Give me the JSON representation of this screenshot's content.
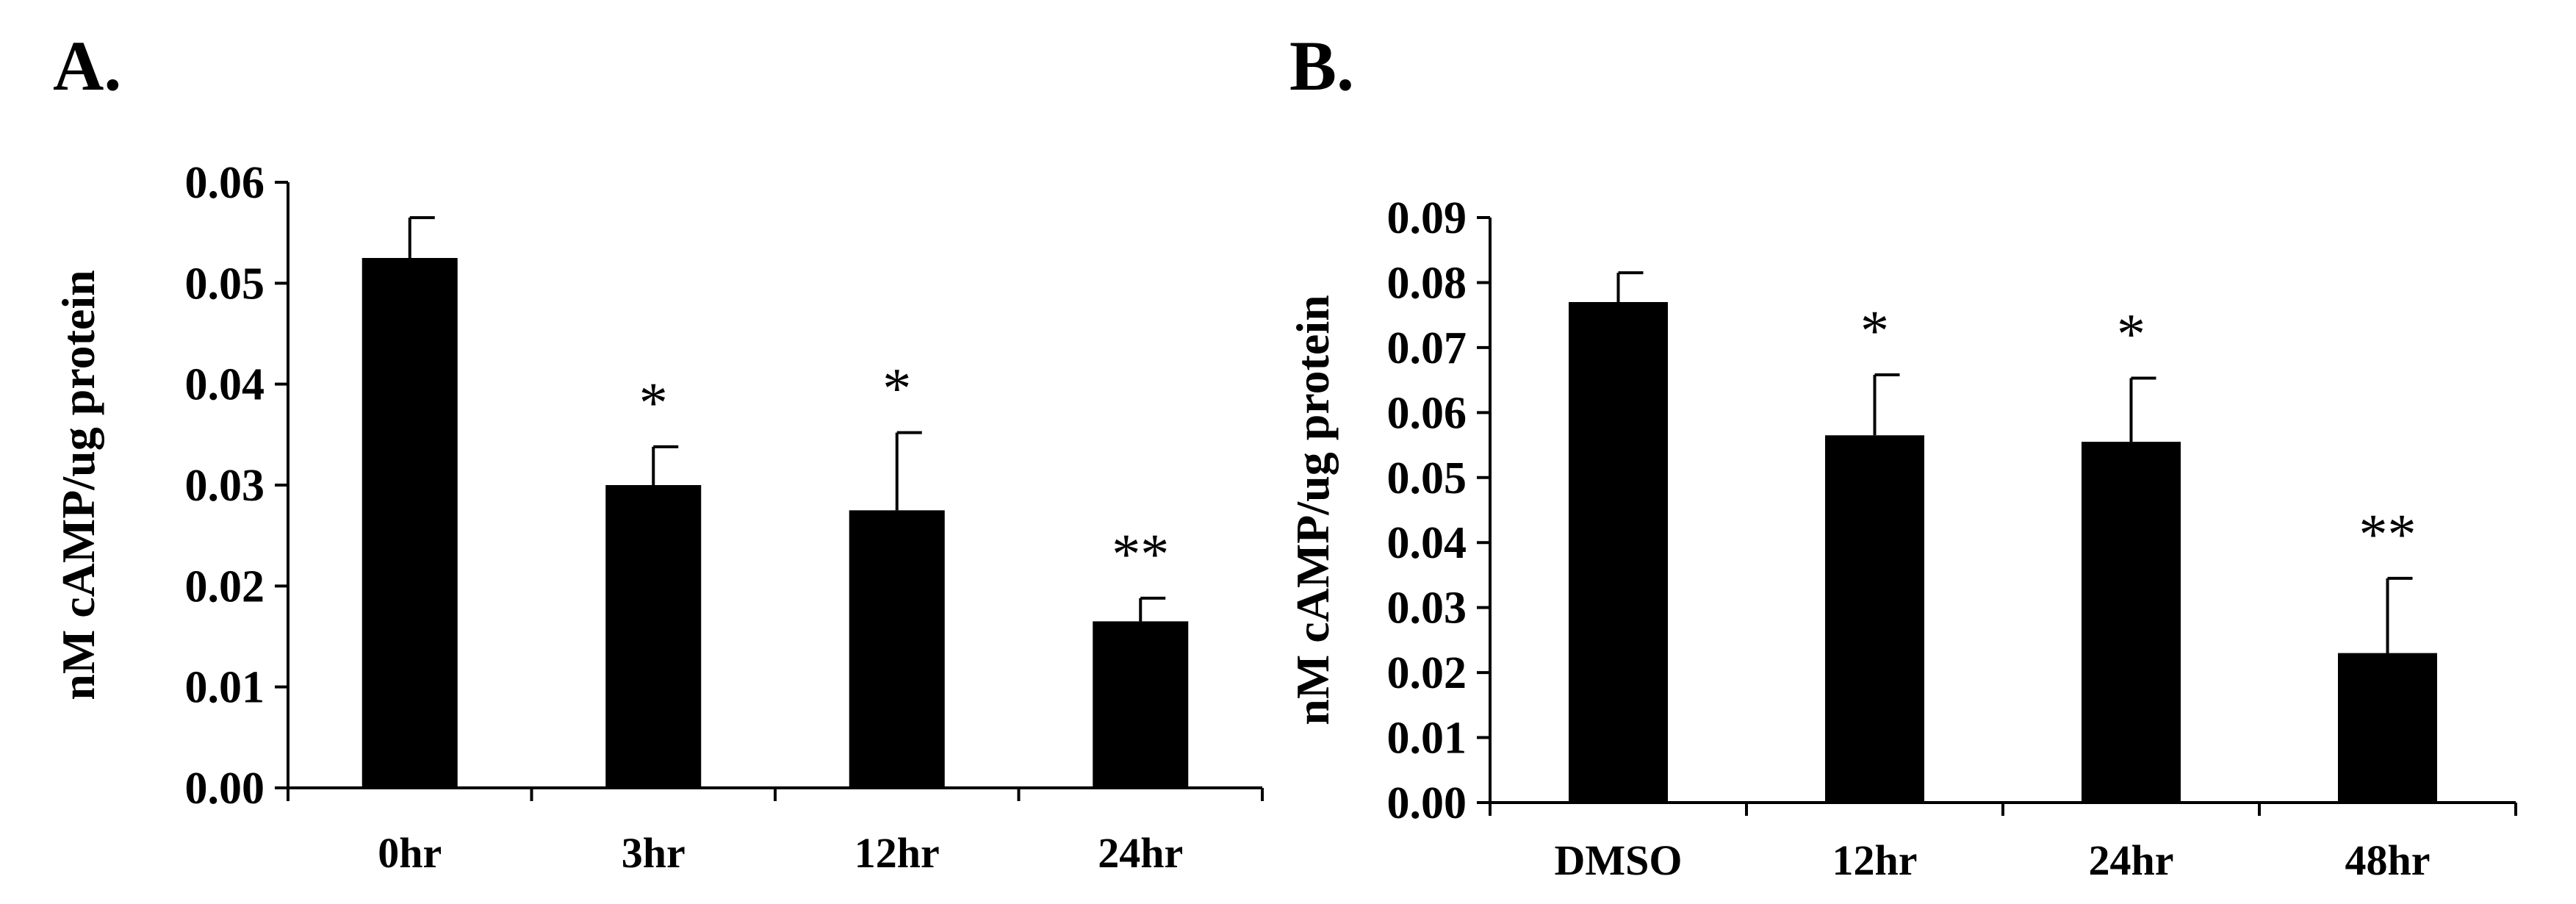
{
  "chart_data": [
    {
      "panel_label": "A.",
      "type": "bar",
      "categories": [
        "0hr",
        "3hr",
        "12hr",
        "24hr"
      ],
      "values": [
        0.0525,
        0.03,
        0.0275,
        0.0165
      ],
      "errors": [
        0.004,
        0.0038,
        0.0077,
        0.0023
      ],
      "significance": [
        "",
        "*",
        "*",
        "**"
      ],
      "ylabel": "nM cAMP/ug protein",
      "xlabel": "",
      "ylim": [
        0,
        0.06
      ],
      "yticks": [
        "0.00",
        "0.01",
        "0.02",
        "0.03",
        "0.04",
        "0.05",
        "0.06"
      ],
      "bar_color": "#000000"
    },
    {
      "panel_label": "B.",
      "type": "bar",
      "categories": [
        "DMSO",
        "12hr",
        "24hr",
        "48hr"
      ],
      "values": [
        0.077,
        0.0565,
        0.0555,
        0.023
      ],
      "errors": [
        0.0045,
        0.0093,
        0.0098,
        0.0115
      ],
      "significance": [
        "",
        "*",
        "*",
        "**"
      ],
      "ylabel": "nM cAMP/ug protein",
      "xlabel": "",
      "ylim": [
        0,
        0.09
      ],
      "yticks": [
        "0.00",
        "0.01",
        "0.02",
        "0.03",
        "0.04",
        "0.05",
        "0.06",
        "0.07",
        "0.08",
        "0.09"
      ],
      "bar_color": "#000000"
    }
  ]
}
